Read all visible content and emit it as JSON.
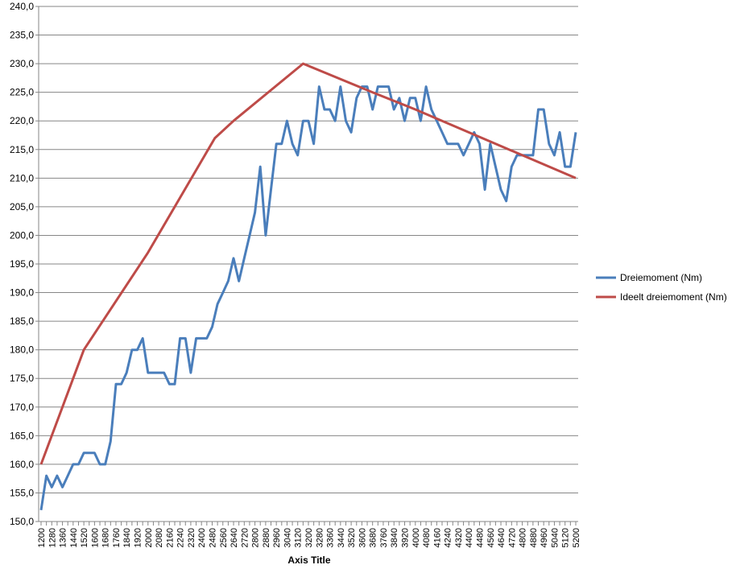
{
  "chart_data": {
    "type": "line",
    "title": "",
    "xlabel": "Axis Title",
    "ylabel": "",
    "ylim": [
      150,
      240
    ],
    "y_tick_step": 5,
    "y_tick_labels": [
      "150,0",
      "155,0",
      "160,0",
      "165,0",
      "170,0",
      "175,0",
      "180,0",
      "185,0",
      "190,0",
      "195,0",
      "200,0",
      "205,0",
      "210,0",
      "215,0",
      "220,0",
      "225,0",
      "230,0",
      "235,0",
      "240,0"
    ],
    "x_tick_labels": [
      "1200",
      "1280",
      "1360",
      "1440",
      "1520",
      "1600",
      "1680",
      "1760",
      "1840",
      "1920",
      "2000",
      "2080",
      "2160",
      "2240",
      "2320",
      "2400",
      "2480",
      "2560",
      "2640",
      "2720",
      "2800",
      "2880",
      "2960",
      "3040",
      "3120",
      "3200",
      "3280",
      "3360",
      "3440",
      "3520",
      "3600",
      "3680",
      "3760",
      "3840",
      "3920",
      "4000",
      "4080",
      "4160",
      "4240",
      "4320",
      "4400",
      "4480",
      "4560",
      "4640",
      "4720",
      "4800",
      "4880",
      "4960",
      "5040",
      "5120",
      "5200"
    ],
    "x_range": [
      1200,
      5200
    ],
    "grid": true,
    "legend_position": "right",
    "colors": {
      "series1": "#4a7ebb",
      "series2": "#be4b48",
      "grid": "#868686",
      "axis": "#868686"
    },
    "series": [
      {
        "name": "Dreiemoment (Nm)",
        "x": [
          1200,
          1240,
          1280,
          1320,
          1360,
          1400,
          1440,
          1480,
          1520,
          1560,
          1600,
          1640,
          1680,
          1720,
          1760,
          1800,
          1840,
          1880,
          1920,
          1960,
          2000,
          2040,
          2080,
          2120,
          2160,
          2200,
          2240,
          2280,
          2320,
          2360,
          2400,
          2440,
          2480,
          2520,
          2560,
          2600,
          2640,
          2680,
          2720,
          2760,
          2800,
          2840,
          2880,
          2920,
          2960,
          3000,
          3040,
          3080,
          3120,
          3160,
          3200,
          3240,
          3280,
          3320,
          3360,
          3400,
          3440,
          3480,
          3520,
          3560,
          3600,
          3640,
          3680,
          3720,
          3760,
          3800,
          3840,
          3880,
          3920,
          3960,
          4000,
          4040,
          4080,
          4120,
          4160,
          4200,
          4240,
          4280,
          4320,
          4360,
          4400,
          4440,
          4480,
          4520,
          4560,
          4600,
          4640,
          4680,
          4720,
          4760,
          4800,
          4840,
          4880,
          4920,
          4960,
          5000,
          5040,
          5080,
          5120,
          5160,
          5200
        ],
        "values": [
          152,
          158,
          156,
          158,
          156,
          158,
          160,
          160,
          162,
          162,
          162,
          160,
          160,
          164,
          174,
          174,
          176,
          180,
          180,
          182,
          176,
          176,
          176,
          176,
          174,
          174,
          182,
          182,
          176,
          182,
          182,
          182,
          184,
          188,
          190,
          192,
          196,
          192,
          196,
          200,
          204,
          212,
          200,
          208,
          216,
          216,
          220,
          216,
          214,
          220,
          220,
          216,
          226,
          222,
          222,
          220,
          226,
          220,
          218,
          224,
          226,
          226,
          222,
          226,
          226,
          226,
          222,
          224,
          220,
          224,
          224,
          220,
          226,
          222,
          220,
          218,
          216,
          216,
          216,
          214,
          216,
          218,
          216,
          208,
          216,
          212,
          208,
          206,
          212,
          214,
          214,
          214,
          214,
          222,
          222,
          216,
          214,
          218,
          212,
          212,
          218
        ]
      },
      {
        "name": "Ideelt dreiemoment (Nm)",
        "x": [
          1200,
          1520,
          2000,
          2500,
          2640,
          3160,
          3680,
          4000,
          5200
        ],
        "values": [
          160,
          180,
          197,
          217,
          220,
          230,
          225,
          222,
          210
        ]
      }
    ]
  }
}
